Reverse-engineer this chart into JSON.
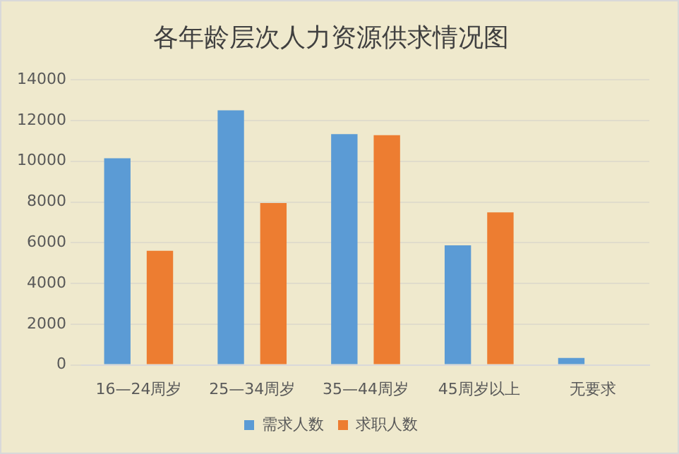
{
  "chart_data": {
    "type": "bar",
    "title": "各年龄层次人力资源供求情况图",
    "categories": [
      "16—24周岁",
      "25—34周岁",
      "35—44周岁",
      "45周岁以上",
      "无要求"
    ],
    "series": [
      {
        "name": "需求人数",
        "color": "#5b9bd5",
        "values": [
          10150,
          12500,
          11330,
          5870,
          340
        ]
      },
      {
        "name": "求职人数",
        "color": "#ed7d31",
        "values": [
          5600,
          7950,
          11280,
          7490,
          0
        ]
      }
    ],
    "ylim": [
      0,
      14000
    ],
    "yticks": [
      0,
      2000,
      4000,
      6000,
      8000,
      10000,
      12000,
      14000
    ],
    "grid": "y",
    "legend": "bottom"
  }
}
